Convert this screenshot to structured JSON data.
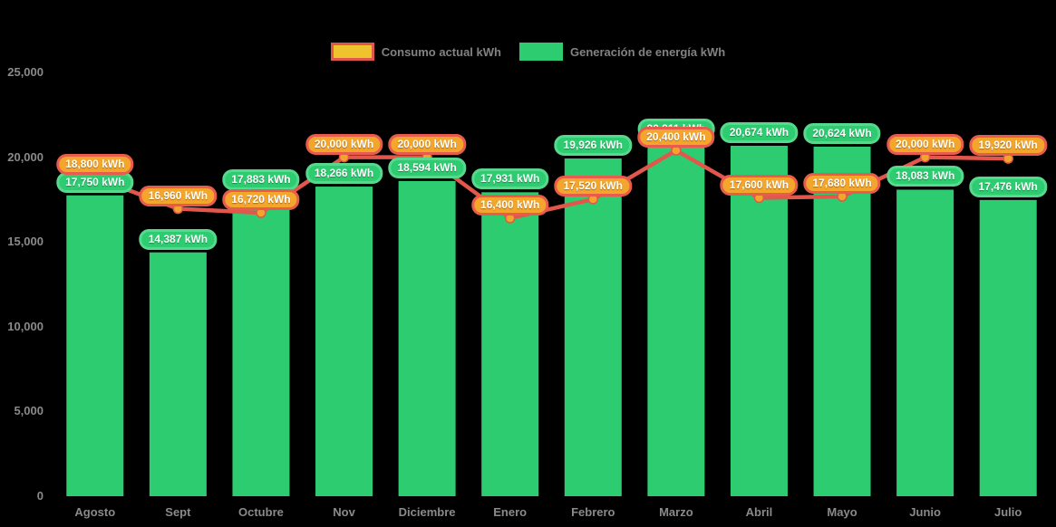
{
  "page": {
    "background": "#000000"
  },
  "colors": {
    "bar_green": "#2ecc71",
    "green_pill_border": "#56d98d",
    "line_red": "#e2574c",
    "marker_orange": "#f2a42c",
    "orange_pill_fill": "#f4a52c",
    "orange_pill_border": "#e85c4e",
    "legend_yellow_fill": "#eec32d",
    "legend_yellow_border": "#e2574c",
    "axis_text_gray": "#8a8a8a"
  },
  "legend": {
    "items": [
      {
        "label": "Consumo actual kWh",
        "swatch_fill": "#eec32d",
        "swatch_border": "#e2574c"
      },
      {
        "label": "Generación de energía kWh",
        "swatch_fill": "#2ecc71",
        "swatch_border": "#2ecc71"
      }
    ]
  },
  "chart_data": {
    "type": "bar+line",
    "title": "",
    "xlabel": "",
    "ylabel": "",
    "grid": false,
    "legend_position": "top",
    "ylim": [
      0,
      25000
    ],
    "y_tick_values": [
      0,
      5000,
      10000,
      15000,
      20000,
      25000
    ],
    "y_tick_labels": [
      "0",
      "5,000",
      "10,000",
      "15,000",
      "20,000",
      "25,000"
    ],
    "categories": [
      "Agosto",
      "Sept",
      "Octubre",
      "Nov",
      "Diciembre",
      "Enero",
      "Febrero",
      "Marzo",
      "Abril",
      "Mayo",
      "Junio",
      "Julio"
    ],
    "series": [
      {
        "name": "Generación de energía kWh",
        "type": "bar",
        "color": "#2ecc71",
        "values": [
          17750,
          14387,
          17883,
          18266,
          18594,
          17931,
          19926,
          20911,
          20674,
          20624,
          18083,
          17476
        ],
        "labels": [
          "17,750 kWh",
          "14,387 kWh",
          "17,883 kWh",
          "18,266 kWh",
          "18,594 kWh",
          "17,931 kWh",
          "19,926 kWh",
          "20,911 kWh",
          "20,674 kWh",
          "20,624 kWh",
          "18,083 kWh",
          "17,476 kWh"
        ]
      },
      {
        "name": "Consumo actual kWh",
        "type": "line",
        "color": "#e2574c",
        "marker_fill": "#f2a42c",
        "values": [
          18800,
          16960,
          16720,
          20000,
          20000,
          16400,
          17520,
          20400,
          17600,
          17680,
          20000,
          19920
        ],
        "labels": [
          "18,800 kWh",
          "16,960 kWh",
          "16,720 kWh",
          "20,000 kWh",
          "20,000 kWh",
          "16,400 kWh",
          "17,520 kWh",
          "20,400 kWh",
          "17,600 kWh",
          "17,680 kWh",
          "20,000 kWh",
          "19,920 kWh"
        ]
      }
    ]
  }
}
